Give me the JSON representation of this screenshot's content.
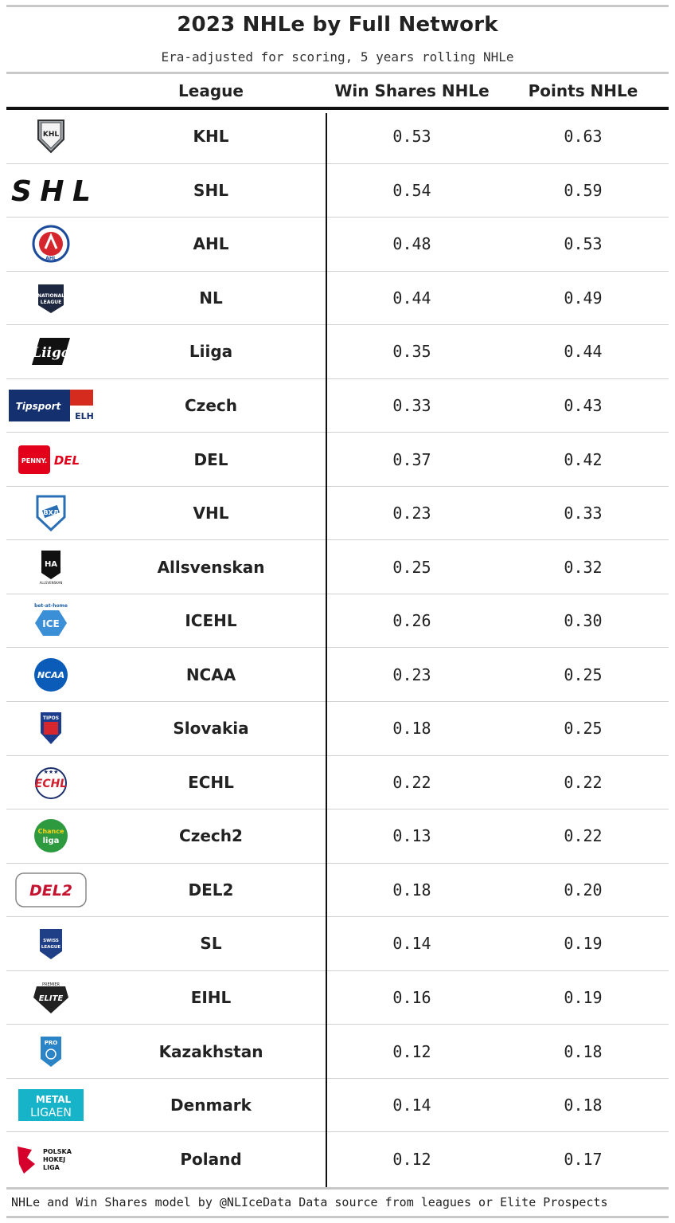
{
  "header": {
    "title": "2023 NHLe by Full Network",
    "subtitle": "Era-adjusted for scoring, 5 years rolling NHLe"
  },
  "columns": {
    "league": "League",
    "win_shares": "Win Shares NHLe",
    "points": "Points NHLe"
  },
  "rows": [
    {
      "league": "KHL",
      "logo": "khl-logo",
      "logo_text": "KHL",
      "win_shares": "0.53",
      "points": "0.63"
    },
    {
      "league": "SHL",
      "logo": "shl-logo",
      "logo_text": "SHL",
      "win_shares": "0.54",
      "points": "0.59"
    },
    {
      "league": "AHL",
      "logo": "ahl-logo",
      "logo_text": "AHL",
      "win_shares": "0.48",
      "points": "0.53"
    },
    {
      "league": "NL",
      "logo": "national-league-logo",
      "logo_text": "NATIONAL LEAGUE",
      "win_shares": "0.44",
      "points": "0.49"
    },
    {
      "league": "Liiga",
      "logo": "liiga-logo",
      "logo_text": "Liiga",
      "win_shares": "0.35",
      "points": "0.44"
    },
    {
      "league": "Czech",
      "logo": "tipsport-elh-logo",
      "logo_text": "Tipsport",
      "win_shares": "0.33",
      "points": "0.43"
    },
    {
      "league": "DEL",
      "logo": "penny-del-logo",
      "logo_text": "PENNY. DEL",
      "win_shares": "0.37",
      "points": "0.42"
    },
    {
      "league": "VHL",
      "logo": "vhl-logo",
      "logo_text": "ВХЛ",
      "win_shares": "0.23",
      "points": "0.33"
    },
    {
      "league": "Allsvenskan",
      "logo": "allsvenskan-logo",
      "logo_text": "HA",
      "win_shares": "0.25",
      "points": "0.32"
    },
    {
      "league": "ICEHL",
      "logo": "icehl-logo",
      "logo_text": "bet-at-home",
      "win_shares": "0.26",
      "points": "0.30"
    },
    {
      "league": "NCAA",
      "logo": "ncaa-logo",
      "logo_text": "NCAA",
      "win_shares": "0.23",
      "points": "0.25"
    },
    {
      "league": "Slovakia",
      "logo": "tipos-extraliga-logo",
      "logo_text": "TIPOS",
      "win_shares": "0.18",
      "points": "0.25"
    },
    {
      "league": "ECHL",
      "logo": "echl-logo",
      "logo_text": "ECHL",
      "win_shares": "0.22",
      "points": "0.22"
    },
    {
      "league": "Czech2",
      "logo": "chance-liga-logo",
      "logo_text": "Chance liga",
      "win_shares": "0.13",
      "points": "0.22"
    },
    {
      "league": "DEL2",
      "logo": "del2-logo",
      "logo_text": "DEL2",
      "win_shares": "0.18",
      "points": "0.20"
    },
    {
      "league": "SL",
      "logo": "swiss-league-logo",
      "logo_text": "SWISS LEAGUE",
      "win_shares": "0.14",
      "points": "0.19"
    },
    {
      "league": "EIHL",
      "logo": "eihl-logo",
      "logo_text": "ELITE",
      "win_shares": "0.16",
      "points": "0.19"
    },
    {
      "league": "Kazakhstan",
      "logo": "pro-hockey-league-logo",
      "logo_text": "PRO",
      "win_shares": "0.12",
      "points": "0.18"
    },
    {
      "league": "Denmark",
      "logo": "metal-ligaen-logo",
      "logo_text": "METAL LIGAEN",
      "win_shares": "0.14",
      "points": "0.18"
    },
    {
      "league": "Poland",
      "logo": "polska-hokej-liga-logo",
      "logo_text": "POLSKA HOKEJ LIGA",
      "win_shares": "0.12",
      "points": "0.17"
    }
  ],
  "footer": "NHLe and Win Shares model by @NLIceData Data source from leagues or Elite Prospects",
  "colors": {
    "rule": "#c8c8c8",
    "header_border": "#111111",
    "row_divider": "#d0d0d0"
  }
}
